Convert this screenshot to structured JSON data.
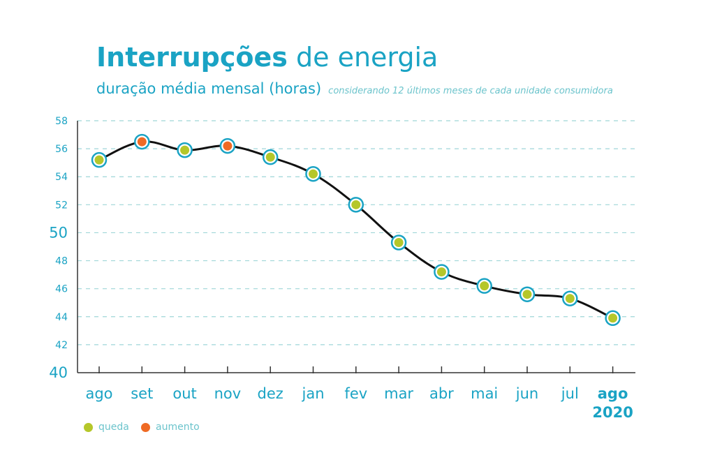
{
  "header": {
    "title_bold": "Interrupções",
    "title_rest": "de energia",
    "subtitle": "duração média mensal (horas)",
    "note": "considerando 12 últimos meses de cada unidade consumidora"
  },
  "legend": {
    "items": [
      {
        "label": "queda",
        "color": "#b5c72a"
      },
      {
        "label": "aumento",
        "color": "#ef6a24"
      }
    ]
  },
  "chart_data": {
    "type": "line",
    "categories": [
      "ago",
      "set",
      "out",
      "nov",
      "dez",
      "jan",
      "fev",
      "mar",
      "abr",
      "mai",
      "jun",
      "jul",
      "ago"
    ],
    "last_category_year": "2020",
    "values": [
      55.2,
      56.5,
      55.9,
      56.2,
      55.4,
      54.2,
      52.0,
      49.3,
      47.2,
      46.2,
      45.6,
      45.3,
      43.9
    ],
    "point_type": [
      "queda",
      "aumento",
      "queda",
      "aumento",
      "queda",
      "queda",
      "queda",
      "queda",
      "queda",
      "queda",
      "queda",
      "queda",
      "queda"
    ],
    "ylim": [
      40,
      58
    ],
    "yticks": [
      40,
      42,
      44,
      46,
      48,
      50,
      52,
      54,
      56,
      58
    ],
    "grid": true,
    "colors": {
      "queda": "#b5c72a",
      "aumento": "#ef6a24",
      "outline": "#1aa3c4",
      "line": "#111111",
      "axis": "#1aa3c4",
      "grid": "#9fd6d8"
    }
  }
}
